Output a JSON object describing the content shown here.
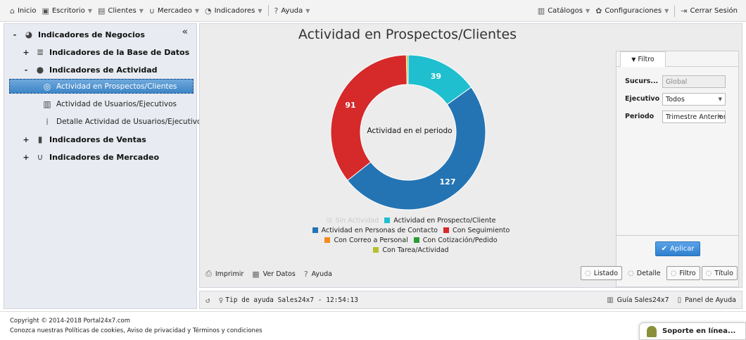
{
  "nav": {
    "items": [
      {
        "id": "inicio",
        "label": "Inicio",
        "icon": "home-icon",
        "glyph": "⌂",
        "caret": false
      },
      {
        "id": "escritorio",
        "label": "Escritorio",
        "icon": "desktop-icon",
        "glyph": "▣",
        "caret": true
      },
      {
        "id": "clientes",
        "label": "Clientes",
        "icon": "clients-icon",
        "glyph": "▤",
        "caret": true
      },
      {
        "id": "mercadeo",
        "label": "Mercadeo",
        "icon": "magnet-icon",
        "glyph": "∪",
        "caret": true
      },
      {
        "id": "indicadores",
        "label": "Indicadores",
        "icon": "dashboard-icon",
        "glyph": "◔",
        "caret": true
      },
      {
        "id": "ayuda",
        "label": "Ayuda",
        "icon": "help-icon",
        "glyph": "?",
        "caret": true
      }
    ],
    "right": [
      {
        "id": "catalogos",
        "label": "Catálogos",
        "icon": "book-icon",
        "glyph": "▥",
        "caret": true
      },
      {
        "id": "configuraciones",
        "label": "Configuraciones",
        "icon": "gear-icon",
        "glyph": "✿",
        "caret": true
      },
      {
        "id": "cerrar",
        "label": "Cerrar Sesión",
        "icon": "logout-icon",
        "glyph": "⇥",
        "caret": false
      }
    ]
  },
  "sidebar": {
    "root": "Indicadores de Negocios",
    "base_datos": "Indicadores de la Base de Datos",
    "actividad": "Indicadores de Actividad",
    "actividad_prospectos": "Actividad en Prospectos/Clientes",
    "actividad_usuarios": "Actividad de Usuarios/Ejecutivos",
    "detalle_actividad": "Detalle Actividad de Usuarios/Ejecutivos",
    "ventas": "Indicadores de Ventas",
    "mercadeo": "Indicadores de Mercadeo"
  },
  "chart": {
    "title": "Actividad en Prospectos/Clientes",
    "center_label": "Actividad en el periodo"
  },
  "chart_data": {
    "type": "pie",
    "title": "Actividad en Prospectos/Clientes",
    "center_text": "Actividad en el periodo",
    "categories": [
      "Sin Actividad",
      "Actividad en Prospecto/Cliente",
      "Actividad en Personas de Contacto",
      "Con Seguimiento",
      "Con Correo a Personal",
      "Con Cotización/Pedido",
      "Con Tarea/Actividad"
    ],
    "values": [
      0,
      39,
      127,
      91,
      0,
      0,
      1
    ],
    "colors": [
      "#cccccc",
      "#1fbfcf",
      "#2474b4",
      "#d6292a",
      "#f28c1a",
      "#2e9b35",
      "#b8bf2a"
    ],
    "hidden": [
      true,
      false,
      false,
      false,
      false,
      false,
      false
    ],
    "legend_position": "bottom"
  },
  "filter": {
    "tab_label": "Filtro",
    "sucursal_label": "Sucurs...",
    "sucursal_value": "Global",
    "ejecutivo_label": "Ejecutivo",
    "ejecutivo_value": "Todos",
    "periodo_label": "Periodo",
    "periodo_value": "Trimestre Anterior",
    "apply_label": "Aplicar"
  },
  "tools": {
    "imprimir": "Imprimir",
    "ver_datos": "Ver Datos",
    "ayuda": "Ayuda"
  },
  "view_buttons": {
    "listado": "Listado",
    "detalle": "Detalle",
    "filtro": "Filtro",
    "titulo": "Título"
  },
  "status": {
    "tip": "Tip de ayuda Sales24x7 - 12:54:13",
    "guia": "Guía Sales24x7",
    "panel_ayuda": "Panel de Ayuda"
  },
  "footer": {
    "copyright": "Copyright © 2014-2018 Portal24x7.com",
    "links": "Conozca nuestras Políticas de cookies, Aviso de privacidad y Términos y condiciones"
  },
  "support": {
    "label": "Soporte en línea..."
  }
}
